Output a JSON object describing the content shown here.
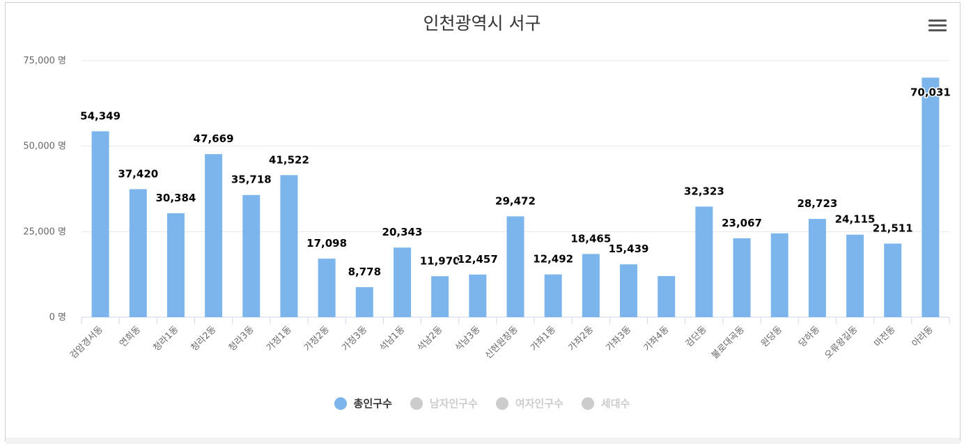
{
  "chart_data": {
    "type": "bar",
    "title": "인천광역시 서구",
    "y_unit": "명",
    "ylim": [
      0,
      75000
    ],
    "yticks": [
      0,
      25000,
      50000,
      75000
    ],
    "ytick_labels": [
      "0 명",
      "25,000 명",
      "50,000 명",
      "75,000 명"
    ],
    "grid": true,
    "legend_position": "bottom-center",
    "categories": [
      "검암경서동",
      "연희동",
      "청라1동",
      "청라2동",
      "청라3동",
      "가정1동",
      "가정2동",
      "가정3동",
      "석남1동",
      "석남2동",
      "석남3동",
      "신현원창동",
      "가좌1동",
      "가좌2동",
      "가좌3동",
      "가좌4동",
      "검단동",
      "불로대곡동",
      "원당동",
      "당하동",
      "오류왕길동",
      "마전동",
      "아라동"
    ],
    "series": [
      {
        "name": "총인구수",
        "color": "#7cb5ec",
        "visible": true,
        "values": [
          54349,
          37420,
          30384,
          47669,
          35718,
          41522,
          17098,
          8778,
          20343,
          11970,
          12457,
          29472,
          12492,
          18465,
          15439,
          12000,
          32323,
          23067,
          24500,
          28723,
          24115,
          21511,
          70031
        ],
        "data_labels": [
          "54,349",
          "37,420",
          "30,384",
          "47,669",
          "35,718",
          "41,522",
          "17,098",
          "8,778",
          "20,343",
          "11,970",
          "12,457",
          "29,472",
          "12,492",
          "18,465",
          "15,439",
          "",
          "32,323",
          "23,067",
          "",
          "28,723",
          "24,115",
          "21,511",
          "70,031"
        ]
      },
      {
        "name": "남자인구수",
        "color": "#cccccc",
        "visible": false
      },
      {
        "name": "여자인구수",
        "color": "#cccccc",
        "visible": false
      },
      {
        "name": "세대수",
        "color": "#cccccc",
        "visible": false
      }
    ]
  },
  "legend": {
    "items": [
      {
        "label": "총인구수",
        "color": "#7cb5ec",
        "text_color": "#333333"
      },
      {
        "label": "남자인구수",
        "color": "#cccccc",
        "text_color": "#cccccc"
      },
      {
        "label": "여자인구수",
        "color": "#cccccc",
        "text_color": "#cccccc"
      },
      {
        "label": "세대수",
        "color": "#cccccc",
        "text_color": "#cccccc"
      }
    ]
  },
  "menu": {
    "icon": "hamburger-menu-icon"
  }
}
